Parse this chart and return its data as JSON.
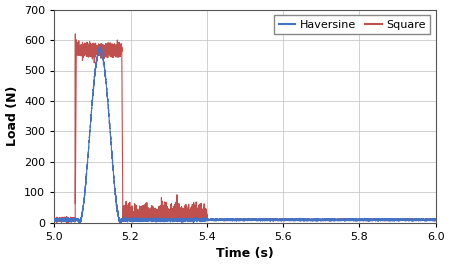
{
  "xlim": [
    5,
    6
  ],
  "ylim": [
    0,
    700
  ],
  "xticks": [
    5.0,
    5.2,
    5.4,
    5.6,
    5.8,
    6.0
  ],
  "yticks": [
    0,
    100,
    200,
    300,
    400,
    500,
    600,
    700
  ],
  "xlabel": "Time (s)",
  "ylabel": "Load (N)",
  "haversine_color": "#4472C4",
  "square_color": "#C0504D",
  "background_color": "#FFFFFF",
  "grid_color": "#BFBFBF",
  "legend_labels": [
    "Haversine",
    "Square"
  ],
  "haversine_peak": 570,
  "haversine_start": 5.065,
  "haversine_end": 5.175,
  "square_peak": 620,
  "square_flat": 567,
  "square_start": 5.055,
  "square_end": 5.18,
  "noise_end": 5.4,
  "noise_amplitude": 20,
  "baseline": 10,
  "baseline_noise": 8,
  "line_width": 0.8
}
